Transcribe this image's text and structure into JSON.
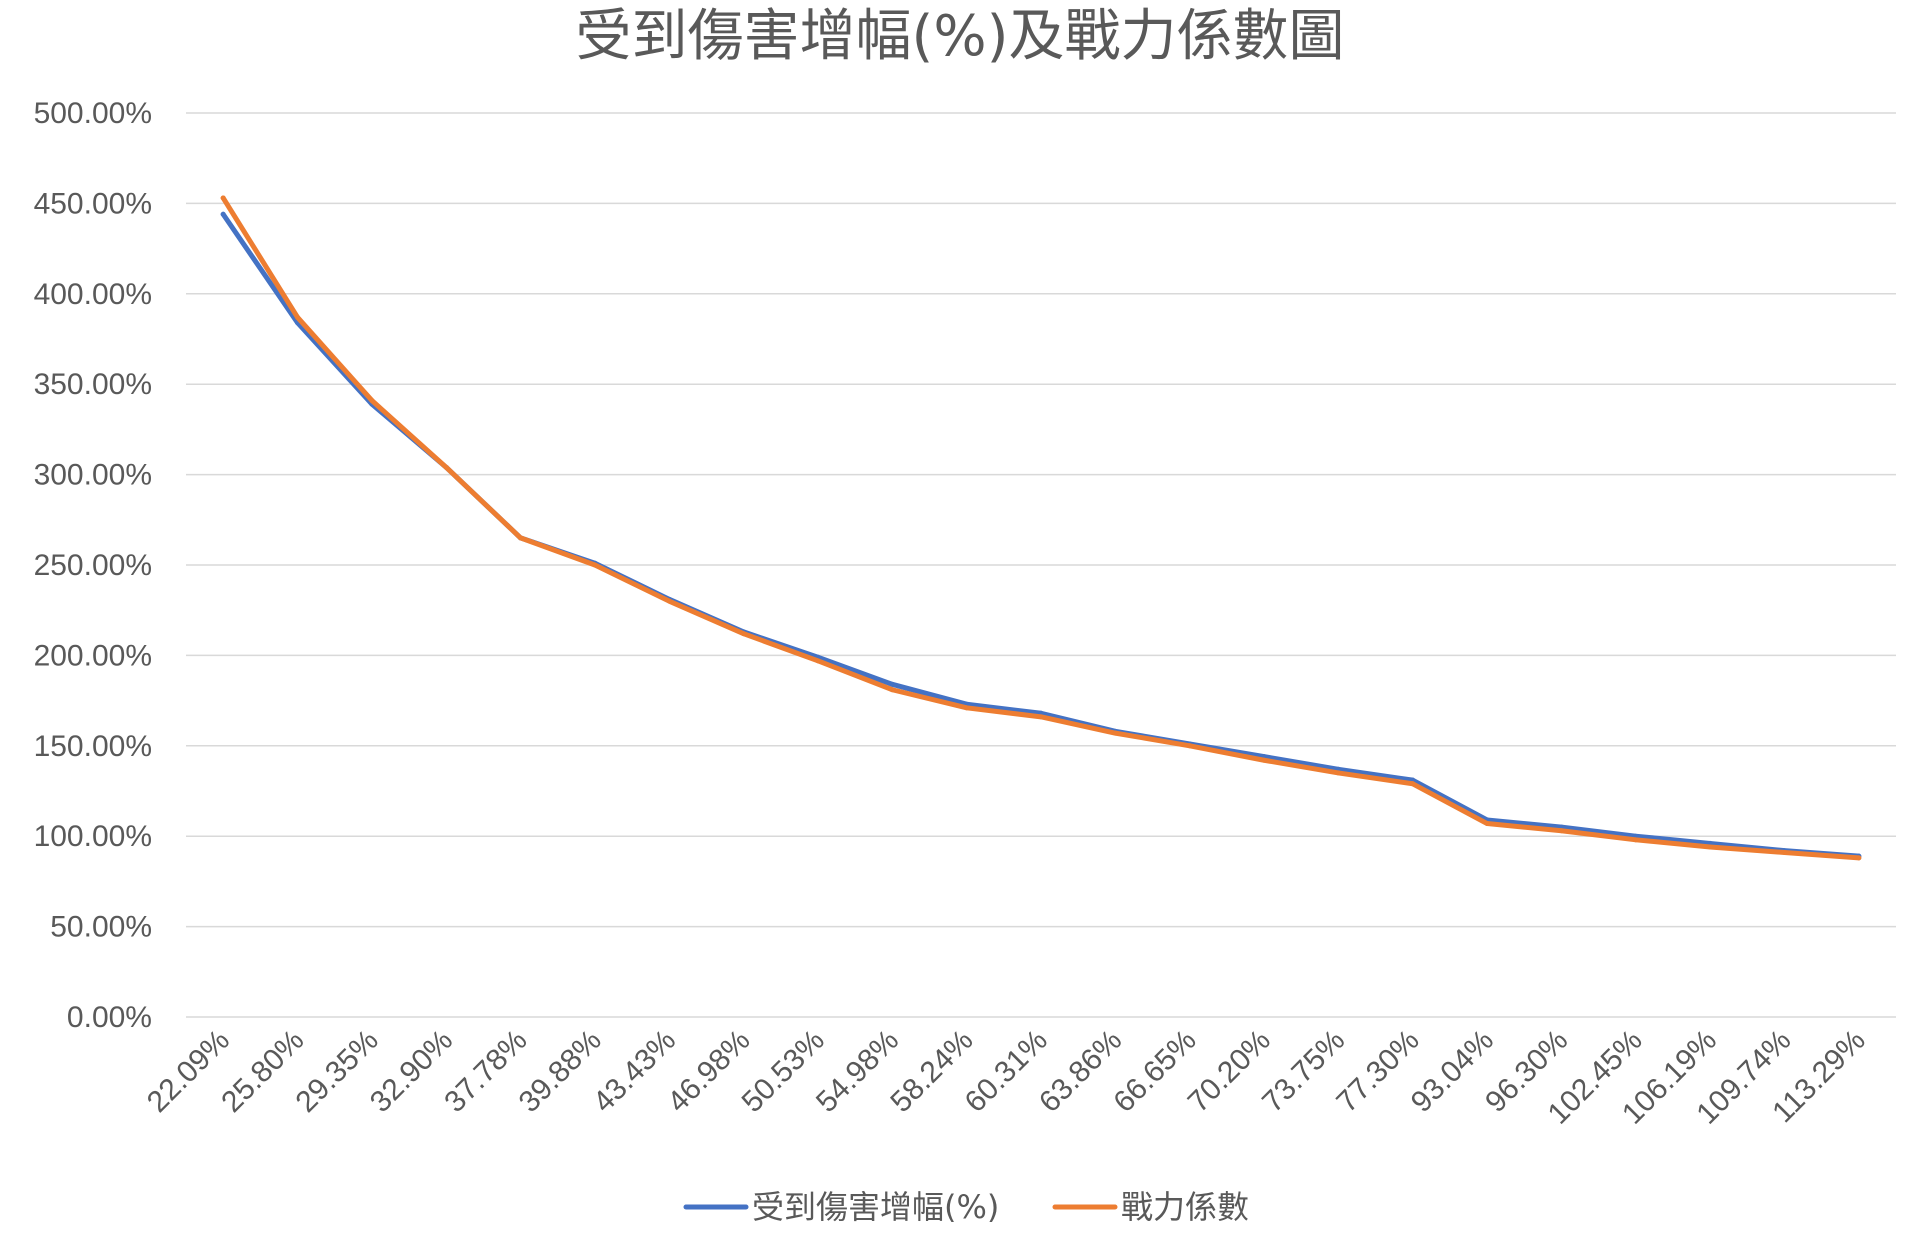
{
  "chart_data": {
    "type": "line",
    "title": "受到傷害增幅(%)及戰力係數圖",
    "xlabel": "",
    "ylabel": "",
    "categories": [
      "22.09%",
      "25.80%",
      "29.35%",
      "32.90%",
      "37.78%",
      "39.88%",
      "43.43%",
      "46.98%",
      "50.53%",
      "54.98%",
      "58.24%",
      "60.31%",
      "63.86%",
      "66.65%",
      "70.20%",
      "73.75%",
      "77.30%",
      "93.04%",
      "96.30%",
      "102.45%",
      "106.19%",
      "109.74%",
      "113.29%"
    ],
    "ylim": [
      0,
      500
    ],
    "yticks": [
      "0.00%",
      "50.00%",
      "100.00%",
      "150.00%",
      "200.00%",
      "250.00%",
      "300.00%",
      "350.00%",
      "400.00%",
      "450.00%",
      "500.00%"
    ],
    "grid": true,
    "legend_position": "bottom",
    "series": [
      {
        "name": "受到傷害增幅(%)",
        "color": "#4472c4",
        "values": [
          444,
          384,
          339,
          304,
          265,
          251,
          231,
          213,
          199,
          184,
          173,
          168,
          158,
          151,
          144,
          137,
          131,
          109,
          105,
          100,
          96,
          92,
          89
        ]
      },
      {
        "name": "戰力係數",
        "color": "#ed7d31",
        "values": [
          453,
          387,
          341,
          304,
          265,
          250,
          230,
          212,
          197,
          181,
          171,
          166,
          157,
          150,
          142,
          135,
          129,
          107,
          103,
          98,
          94,
          91,
          88
        ]
      }
    ]
  }
}
